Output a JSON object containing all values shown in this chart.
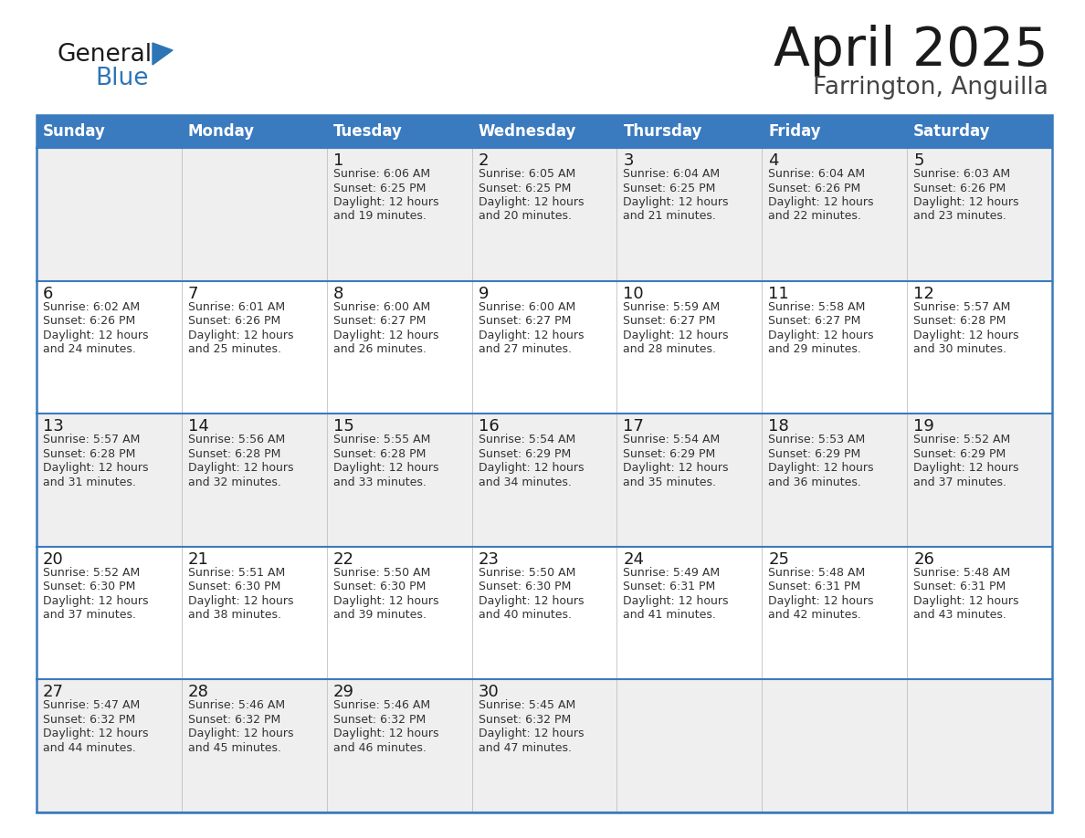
{
  "title": "April 2025",
  "subtitle": "Farrington, Anguilla",
  "header_color": "#3a7abf",
  "header_text_color": "#ffffff",
  "row_bg_colors": [
    "#efefef",
    "#ffffff"
  ],
  "border_color": "#3a7abf",
  "cell_line_color": "#c0c0c0",
  "days_of_week": [
    "Sunday",
    "Monday",
    "Tuesday",
    "Wednesday",
    "Thursday",
    "Friday",
    "Saturday"
  ],
  "weeks": [
    [
      {
        "day": "",
        "sunrise": "",
        "sunset": "",
        "daylight": ""
      },
      {
        "day": "",
        "sunrise": "",
        "sunset": "",
        "daylight": ""
      },
      {
        "day": "1",
        "sunrise": "Sunrise: 6:06 AM",
        "sunset": "Sunset: 6:25 PM",
        "daylight": "Daylight: 12 hours\nand 19 minutes."
      },
      {
        "day": "2",
        "sunrise": "Sunrise: 6:05 AM",
        "sunset": "Sunset: 6:25 PM",
        "daylight": "Daylight: 12 hours\nand 20 minutes."
      },
      {
        "day": "3",
        "sunrise": "Sunrise: 6:04 AM",
        "sunset": "Sunset: 6:25 PM",
        "daylight": "Daylight: 12 hours\nand 21 minutes."
      },
      {
        "day": "4",
        "sunrise": "Sunrise: 6:04 AM",
        "sunset": "Sunset: 6:26 PM",
        "daylight": "Daylight: 12 hours\nand 22 minutes."
      },
      {
        "day": "5",
        "sunrise": "Sunrise: 6:03 AM",
        "sunset": "Sunset: 6:26 PM",
        "daylight": "Daylight: 12 hours\nand 23 minutes."
      }
    ],
    [
      {
        "day": "6",
        "sunrise": "Sunrise: 6:02 AM",
        "sunset": "Sunset: 6:26 PM",
        "daylight": "Daylight: 12 hours\nand 24 minutes."
      },
      {
        "day": "7",
        "sunrise": "Sunrise: 6:01 AM",
        "sunset": "Sunset: 6:26 PM",
        "daylight": "Daylight: 12 hours\nand 25 minutes."
      },
      {
        "day": "8",
        "sunrise": "Sunrise: 6:00 AM",
        "sunset": "Sunset: 6:27 PM",
        "daylight": "Daylight: 12 hours\nand 26 minutes."
      },
      {
        "day": "9",
        "sunrise": "Sunrise: 6:00 AM",
        "sunset": "Sunset: 6:27 PM",
        "daylight": "Daylight: 12 hours\nand 27 minutes."
      },
      {
        "day": "10",
        "sunrise": "Sunrise: 5:59 AM",
        "sunset": "Sunset: 6:27 PM",
        "daylight": "Daylight: 12 hours\nand 28 minutes."
      },
      {
        "day": "11",
        "sunrise": "Sunrise: 5:58 AM",
        "sunset": "Sunset: 6:27 PM",
        "daylight": "Daylight: 12 hours\nand 29 minutes."
      },
      {
        "day": "12",
        "sunrise": "Sunrise: 5:57 AM",
        "sunset": "Sunset: 6:28 PM",
        "daylight": "Daylight: 12 hours\nand 30 minutes."
      }
    ],
    [
      {
        "day": "13",
        "sunrise": "Sunrise: 5:57 AM",
        "sunset": "Sunset: 6:28 PM",
        "daylight": "Daylight: 12 hours\nand 31 minutes."
      },
      {
        "day": "14",
        "sunrise": "Sunrise: 5:56 AM",
        "sunset": "Sunset: 6:28 PM",
        "daylight": "Daylight: 12 hours\nand 32 minutes."
      },
      {
        "day": "15",
        "sunrise": "Sunrise: 5:55 AM",
        "sunset": "Sunset: 6:28 PM",
        "daylight": "Daylight: 12 hours\nand 33 minutes."
      },
      {
        "day": "16",
        "sunrise": "Sunrise: 5:54 AM",
        "sunset": "Sunset: 6:29 PM",
        "daylight": "Daylight: 12 hours\nand 34 minutes."
      },
      {
        "day": "17",
        "sunrise": "Sunrise: 5:54 AM",
        "sunset": "Sunset: 6:29 PM",
        "daylight": "Daylight: 12 hours\nand 35 minutes."
      },
      {
        "day": "18",
        "sunrise": "Sunrise: 5:53 AM",
        "sunset": "Sunset: 6:29 PM",
        "daylight": "Daylight: 12 hours\nand 36 minutes."
      },
      {
        "day": "19",
        "sunrise": "Sunrise: 5:52 AM",
        "sunset": "Sunset: 6:29 PM",
        "daylight": "Daylight: 12 hours\nand 37 minutes."
      }
    ],
    [
      {
        "day": "20",
        "sunrise": "Sunrise: 5:52 AM",
        "sunset": "Sunset: 6:30 PM",
        "daylight": "Daylight: 12 hours\nand 37 minutes."
      },
      {
        "day": "21",
        "sunrise": "Sunrise: 5:51 AM",
        "sunset": "Sunset: 6:30 PM",
        "daylight": "Daylight: 12 hours\nand 38 minutes."
      },
      {
        "day": "22",
        "sunrise": "Sunrise: 5:50 AM",
        "sunset": "Sunset: 6:30 PM",
        "daylight": "Daylight: 12 hours\nand 39 minutes."
      },
      {
        "day": "23",
        "sunrise": "Sunrise: 5:50 AM",
        "sunset": "Sunset: 6:30 PM",
        "daylight": "Daylight: 12 hours\nand 40 minutes."
      },
      {
        "day": "24",
        "sunrise": "Sunrise: 5:49 AM",
        "sunset": "Sunset: 6:31 PM",
        "daylight": "Daylight: 12 hours\nand 41 minutes."
      },
      {
        "day": "25",
        "sunrise": "Sunrise: 5:48 AM",
        "sunset": "Sunset: 6:31 PM",
        "daylight": "Daylight: 12 hours\nand 42 minutes."
      },
      {
        "day": "26",
        "sunrise": "Sunrise: 5:48 AM",
        "sunset": "Sunset: 6:31 PM",
        "daylight": "Daylight: 12 hours\nand 43 minutes."
      }
    ],
    [
      {
        "day": "27",
        "sunrise": "Sunrise: 5:47 AM",
        "sunset": "Sunset: 6:32 PM",
        "daylight": "Daylight: 12 hours\nand 44 minutes."
      },
      {
        "day": "28",
        "sunrise": "Sunrise: 5:46 AM",
        "sunset": "Sunset: 6:32 PM",
        "daylight": "Daylight: 12 hours\nand 45 minutes."
      },
      {
        "day": "29",
        "sunrise": "Sunrise: 5:46 AM",
        "sunset": "Sunset: 6:32 PM",
        "daylight": "Daylight: 12 hours\nand 46 minutes."
      },
      {
        "day": "30",
        "sunrise": "Sunrise: 5:45 AM",
        "sunset": "Sunset: 6:32 PM",
        "daylight": "Daylight: 12 hours\nand 47 minutes."
      },
      {
        "day": "",
        "sunrise": "",
        "sunset": "",
        "daylight": ""
      },
      {
        "day": "",
        "sunrise": "",
        "sunset": "",
        "daylight": ""
      },
      {
        "day": "",
        "sunrise": "",
        "sunset": "",
        "daylight": ""
      }
    ]
  ]
}
